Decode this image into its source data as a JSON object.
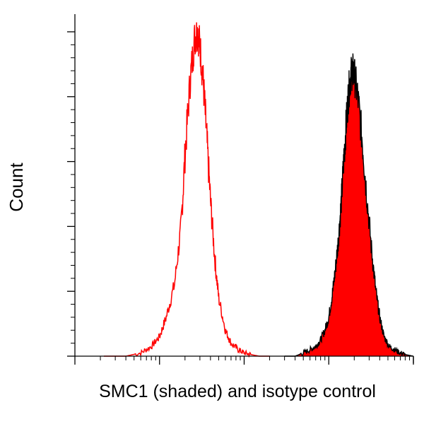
{
  "chart_data": {
    "type": "area",
    "title": "",
    "xlabel": "SMC1 (shaded) and isotype control",
    "ylabel": "Count",
    "x_scale": "log",
    "grid": false,
    "legend": "none",
    "series": [
      {
        "style": "outline",
        "color": "#ff0000",
        "x": [
          0.022,
          0.04,
          0.06,
          0.08,
          0.1,
          0.12,
          0.15,
          0.18,
          0.2,
          0.23,
          0.26,
          0.28,
          0.3,
          0.33,
          0.36,
          0.4,
          0.45,
          0.5,
          0.6,
          0.7,
          0.85,
          1.0,
          1.2,
          1.5,
          2.0
        ],
        "y": [
          0,
          0,
          1,
          3,
          6,
          12,
          22,
          40,
          62,
          85,
          98,
          100,
          96,
          84,
          68,
          48,
          30,
          18,
          8,
          4,
          2,
          1,
          0.5,
          0,
          0
        ]
      },
      {
        "style": "filled",
        "color": "#ff0000",
        "outline_color": "#000000",
        "x": [
          3.0,
          4.0,
          5.0,
          6.0,
          7.0,
          8.0,
          9.0,
          10.0,
          11.0,
          12.0,
          13.0,
          14.0,
          15.0,
          16.0,
          17.0,
          18.0,
          19.0,
          20.0,
          22.0,
          25.0,
          28.0,
          32.0,
          36.0,
          40.0,
          45.0,
          52.0,
          60.0,
          70.0,
          80.0,
          100.0
        ],
        "y": [
          0,
          0,
          1,
          2,
          3,
          5,
          8,
          12,
          19,
          27,
          36,
          47,
          60,
          71,
          80,
          86,
          88,
          87,
          80,
          66,
          50,
          33,
          20,
          12,
          6,
          3,
          2,
          1,
          0.5,
          0
        ]
      }
    ]
  }
}
